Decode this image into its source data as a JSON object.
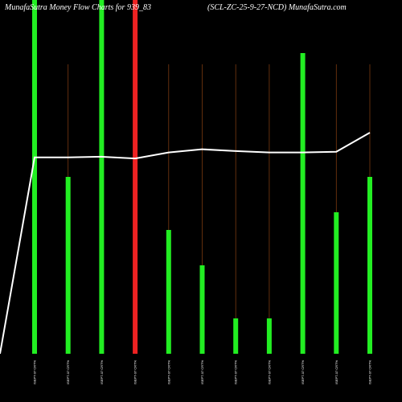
{
  "chart_data": {
    "type": "bar",
    "title_left": "MunafaSutra  Money Flow  Charts for 939_83",
    "title_right": "(SCL-ZC-25-9-27-NCD) MunafaSutra.com",
    "ylim": [
      0,
      100
    ],
    "categories": [
      "ISEPT-07 CRT%",
      "ISEPT-07 CRT%",
      "ISEPT-07 CRT%",
      "ISEPT-07 CRT%",
      "ISEPT-07 CRT%",
      "ISEPT-07 CRT%",
      "ISEPT-07 CRT%",
      "ISEPT-07 CRT%",
      "ISEPT-07 CRT%",
      "ISEPT-07 CRT%",
      "ISEPT-07 CRT%"
    ],
    "series": [
      {
        "values": [
          100,
          50,
          100,
          100,
          35,
          25,
          10,
          10,
          85,
          40,
          50
        ],
        "colors": [
          "#22ee22",
          "#22ee22",
          "#22ee22",
          "#ee2222",
          "#22ee22",
          "#22ee22",
          "#22ee22",
          "#22ee22",
          "#22ee22",
          "#22ee22",
          "#22ee22"
        ]
      }
    ],
    "line_series": {
      "values": [
        55.5,
        55.5,
        55.7,
        55.2,
        56.9,
        57.8,
        57.3,
        56.9,
        56.9,
        57.1,
        62.5
      ],
      "start_value": 0,
      "color": "#ffffff"
    },
    "grid_color": "#7a3a10",
    "background": "#000000"
  }
}
